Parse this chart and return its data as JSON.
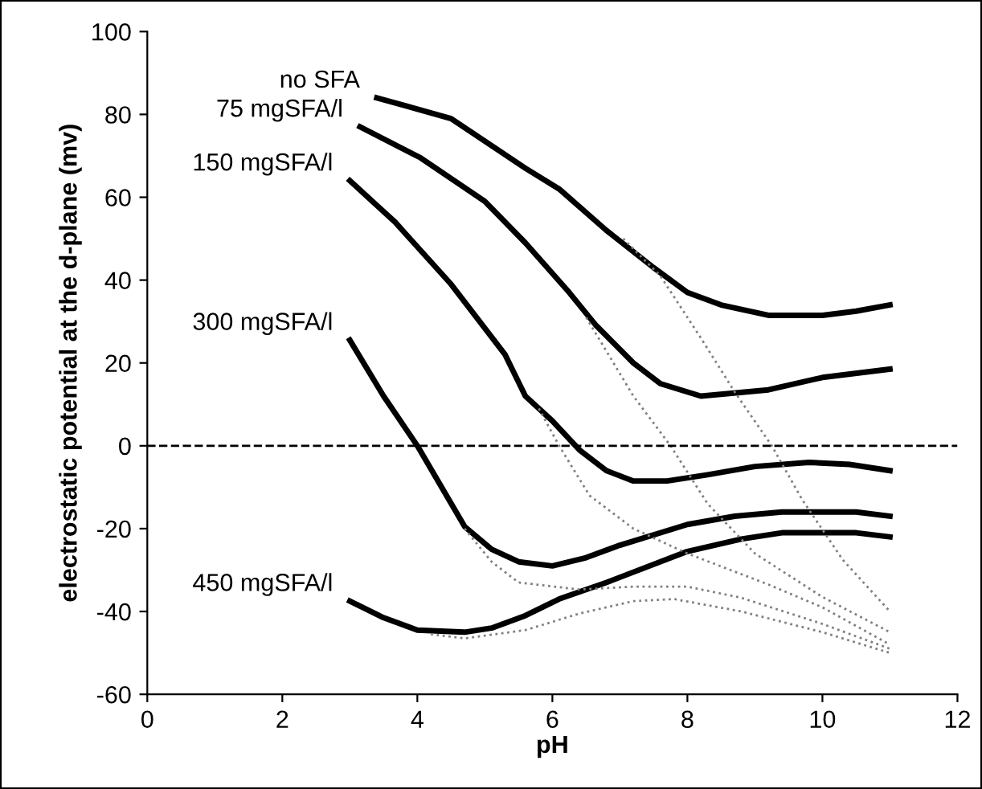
{
  "chart_data": {
    "type": "line",
    "xlabel": "pH",
    "ylabel": "electrostatic potential at the d-plane (mv)",
    "xlim": [
      0,
      12
    ],
    "xticks": [
      0,
      2,
      4,
      6,
      8,
      10,
      12
    ],
    "ylim": [
      -60,
      100
    ],
    "yticks": [
      -60,
      -40,
      -20,
      0,
      20,
      40,
      60,
      80,
      100
    ],
    "grid": false,
    "legend": false,
    "marker": "none",
    "ref_lines": [
      {
        "axis": "y",
        "value": 0,
        "color": "#000000",
        "line_style": "dashed"
      }
    ],
    "series": [
      {
        "name": "no SFA",
        "color": "#000000",
        "line_style": "solid",
        "x": [
          3.4,
          4.5,
          5.6,
          6.1,
          6.8,
          7.5,
          8.0,
          8.5,
          9.2,
          10,
          10.5,
          11
        ],
        "values": [
          84,
          79,
          67,
          62,
          52,
          43,
          37,
          34,
          31.5,
          31.5,
          32.5,
          34
        ]
      },
      {
        "name": "75 mgSFA/l",
        "color": "#000000",
        "line_style": "solid",
        "x": [
          3.15,
          4.05,
          5,
          5.6,
          6.25,
          6.65,
          7.2,
          7.6,
          8.2,
          9.2,
          10,
          11
        ],
        "values": [
          77,
          69.5,
          59,
          49,
          37,
          29,
          20,
          15,
          12,
          13.5,
          16.5,
          18.5
        ]
      },
      {
        "name": "150 mgSFA/l",
        "color": "#000000",
        "line_style": "solid",
        "x": [
          3,
          3.67,
          4.5,
          5.3,
          5.6,
          6.0,
          6.4,
          6.8,
          7.2,
          7.7,
          8.3,
          9.0,
          9.8,
          10.4,
          11
        ],
        "values": [
          64,
          54,
          39,
          22,
          12,
          6,
          -1,
          -6,
          -8.5,
          -8.5,
          -7,
          -5,
          -4,
          -4.5,
          -6
        ]
      },
      {
        "name": "300 mgSFA/l",
        "color": "#000000",
        "line_style": "solid",
        "x": [
          3,
          3.5,
          4,
          4.7,
          5.1,
          5.5,
          6,
          6.5,
          7,
          8,
          8.7,
          9.4,
          10.5,
          11
        ],
        "values": [
          25.5,
          12,
          0,
          -19.5,
          -25,
          -28,
          -29,
          -27,
          -24,
          -19,
          -17,
          -16,
          -16,
          -17
        ]
      },
      {
        "name": "450 mgSFA/l",
        "color": "#000000",
        "line_style": "solid",
        "x": [
          3,
          3.5,
          4,
          4.7,
          5.1,
          5.6,
          6.1,
          6.8,
          8,
          8.8,
          9.4,
          10.5,
          11
        ],
        "values": [
          -37.5,
          -41.5,
          -44.5,
          -45,
          -44,
          -41,
          -37,
          -33,
          -25.5,
          -22.5,
          -21,
          -21,
          -22
        ]
      },
      {
        "color": "#808080",
        "line_style": "dotted",
        "x": [
          7.05,
          7.6,
          8.2,
          8.7,
          9.25,
          9.7,
          10.3,
          11
        ],
        "values": [
          50,
          41,
          26,
          13,
          0,
          -13,
          -27.5,
          -40
        ]
      },
      {
        "color": "#808080",
        "line_style": "dotted",
        "x": [
          6.5,
          7.2,
          7.75,
          8.3,
          9,
          10,
          11
        ],
        "values": [
          31,
          12,
          0,
          -14,
          -26,
          -36.5,
          -45
        ]
      },
      {
        "color": "#808080",
        "line_style": "dotted",
        "x": [
          5.8,
          6.1,
          6.55,
          7.2,
          8,
          9.2,
          10,
          11
        ],
        "values": [
          9,
          0,
          -12,
          -20,
          -26,
          -33.5,
          -39,
          -48
        ]
      },
      {
        "color": "#808080",
        "line_style": "dotted",
        "x": [
          4.7,
          5.1,
          5.5,
          6.4,
          7.2,
          8,
          8.8,
          10,
          11
        ],
        "values": [
          -20,
          -28,
          -33,
          -34.7,
          -34,
          -34,
          -36.7,
          -43,
          -49
        ]
      },
      {
        "color": "#808080",
        "line_style": "dotted",
        "x": [
          4.2,
          4.7,
          5.6,
          6.4,
          7.2,
          7.8,
          8.8,
          10,
          11
        ],
        "values": [
          -45.5,
          -46.5,
          -44.5,
          -40.5,
          -37.5,
          -37,
          -40,
          -45,
          -50
        ]
      }
    ]
  }
}
